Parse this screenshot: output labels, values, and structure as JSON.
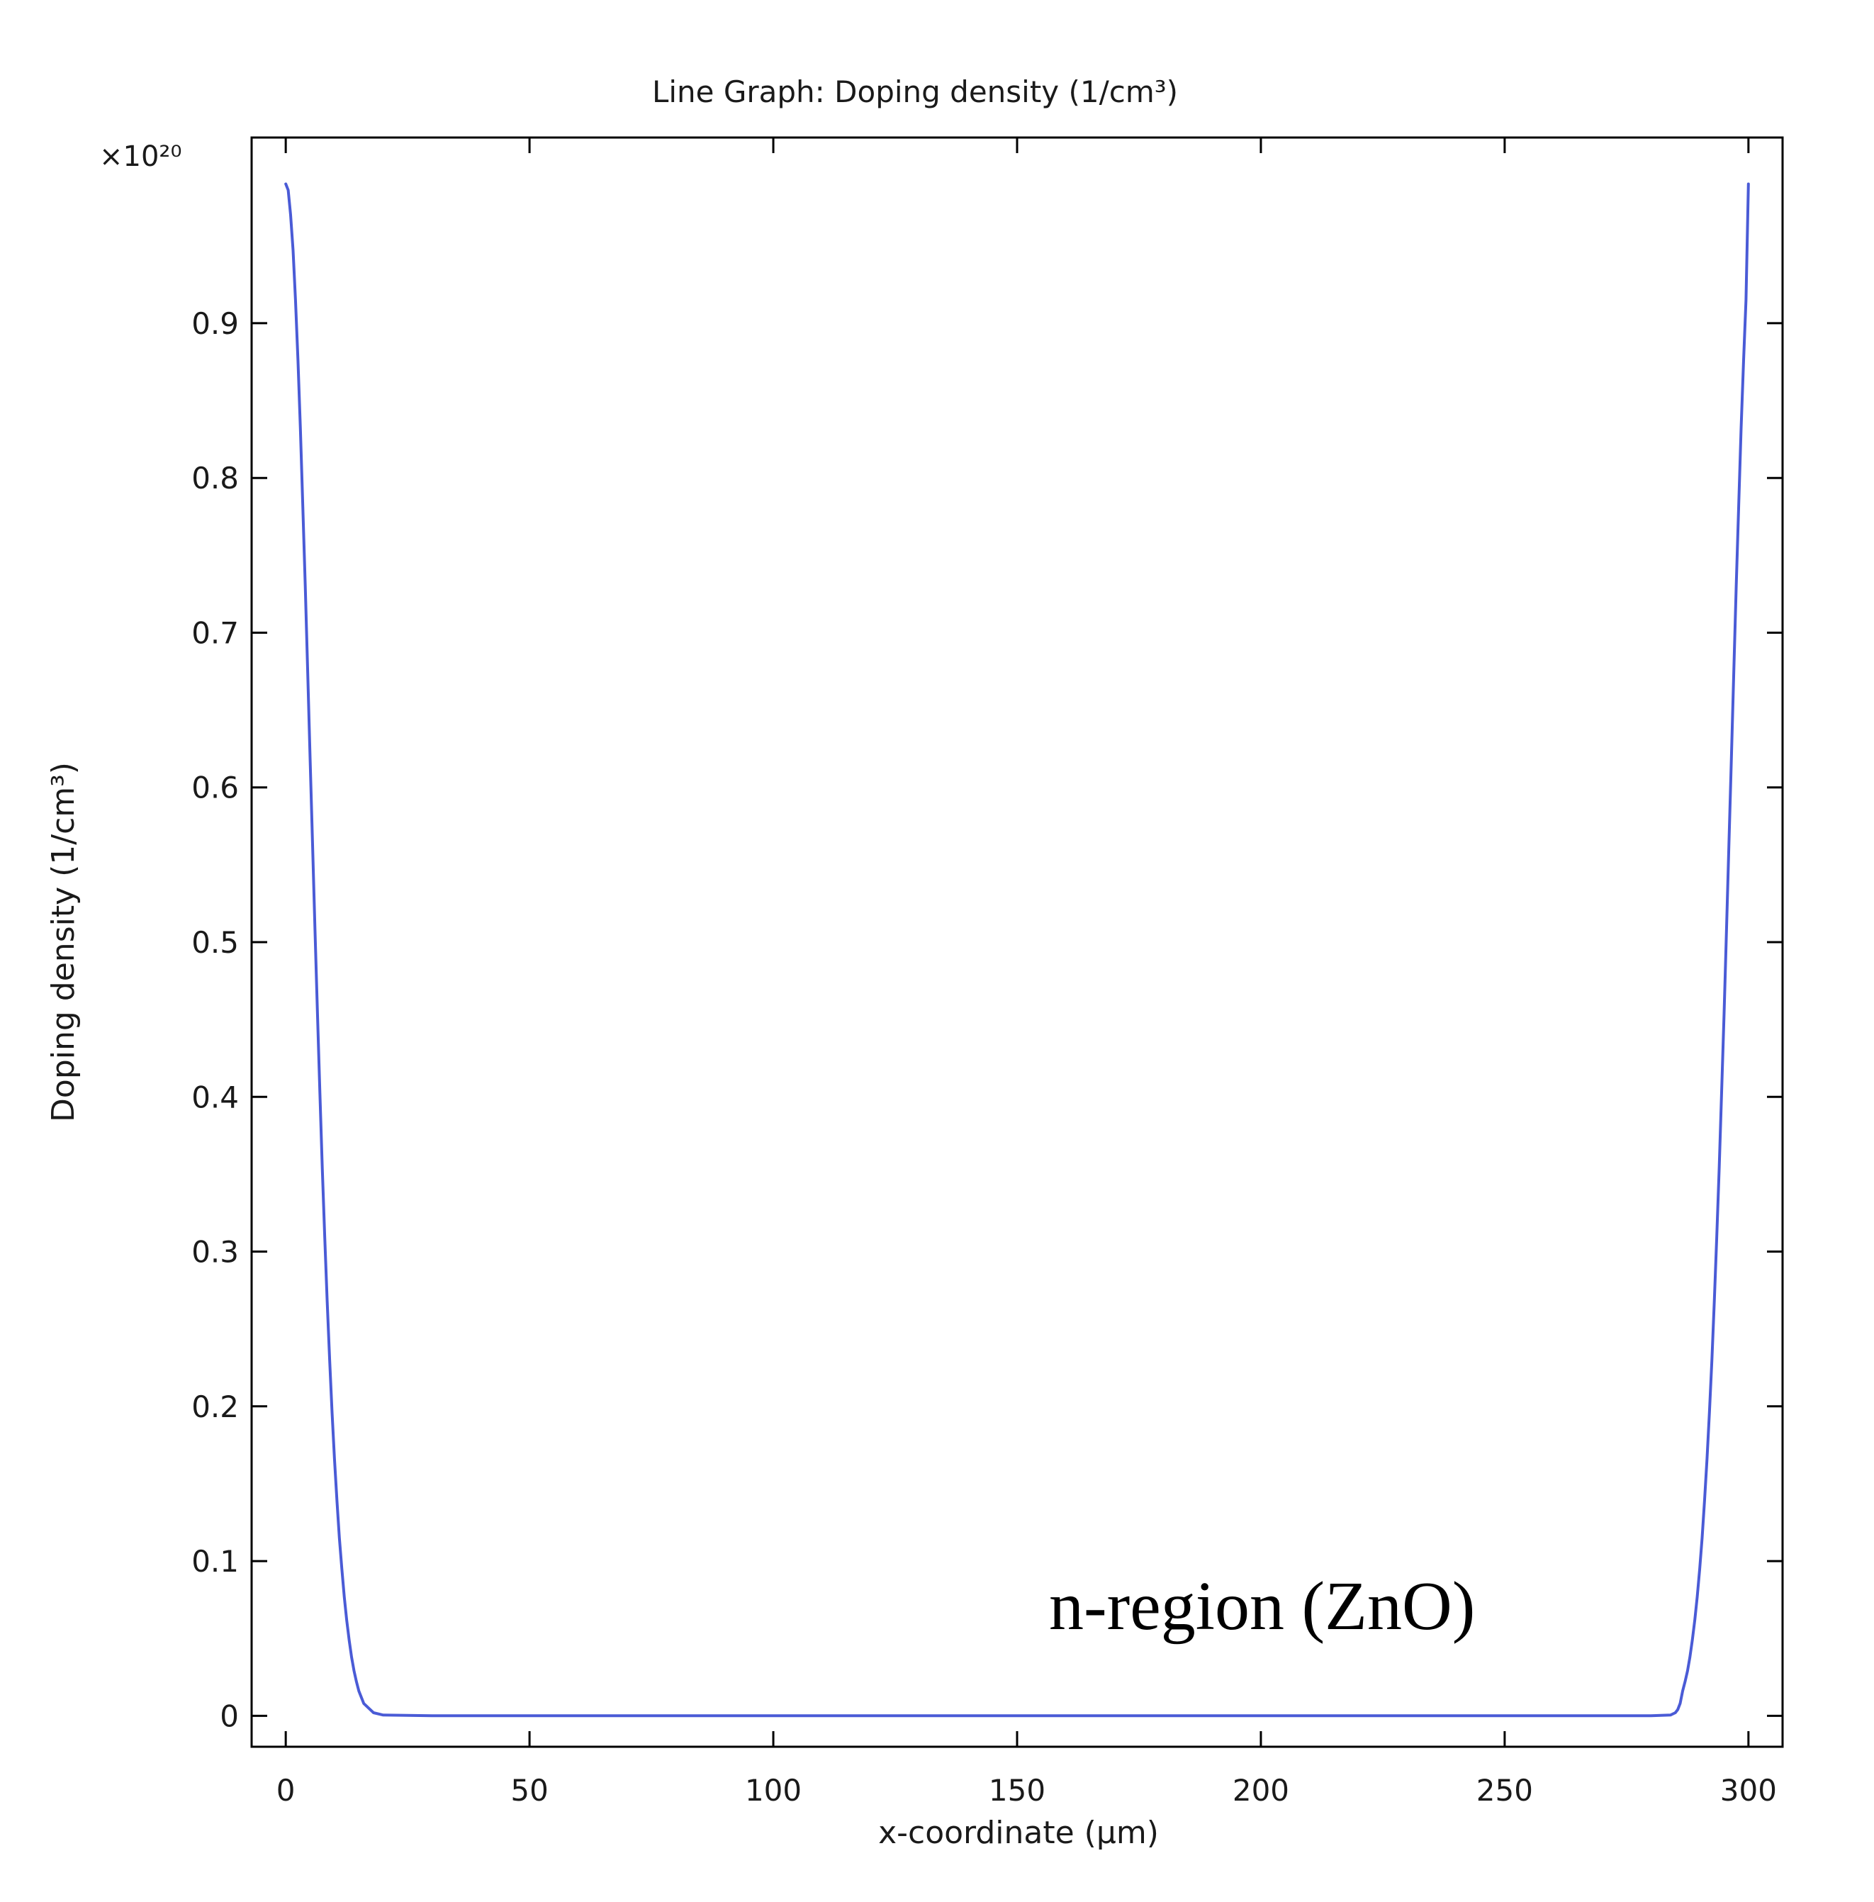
{
  "chart_data": {
    "type": "line",
    "title": "Line Graph: Doping density (1/cm³)",
    "xlabel": "x-coordinate (µm)",
    "ylabel": "Doping density (1/cm³)",
    "y_multiplier": "×10²⁰",
    "annotation": "n-region (ZnO)",
    "xlim": [
      -7,
      307
    ],
    "ylim": [
      -0.02,
      1.02
    ],
    "x_ticks": [
      0,
      50,
      100,
      150,
      200,
      250,
      300
    ],
    "x_tick_labels": [
      "0",
      "50",
      "100",
      "150",
      "200",
      "250",
      "300"
    ],
    "y_ticks": [
      0,
      0.1,
      0.2,
      0.3,
      0.4,
      0.5,
      0.6,
      0.7,
      0.8,
      0.9
    ],
    "y_tick_labels": [
      "0",
      "0.1",
      "0.2",
      "0.3",
      "0.4",
      "0.5",
      "0.6",
      "0.7",
      "0.8",
      "0.9"
    ],
    "grid": false,
    "series": [
      {
        "color": "#4a5bd6",
        "x": [
          0,
          0.5,
          1,
          1.5,
          2,
          2.5,
          3,
          3.5,
          4,
          4.5,
          5,
          5.5,
          6,
          6.5,
          7,
          7.5,
          8,
          8.5,
          9,
          9.5,
          10,
          10.5,
          11,
          11.5,
          12,
          12.5,
          13,
          13.5,
          14,
          14.5,
          15,
          16,
          18,
          20,
          30,
          50,
          100,
          150,
          200,
          250,
          270,
          280,
          284,
          285,
          285.5,
          286,
          286.5,
          287,
          287.5,
          288,
          288.5,
          289,
          289.5,
          290,
          290.5,
          291,
          291.5,
          292,
          292.5,
          293,
          293.5,
          294,
          294.5,
          295,
          295.5,
          296,
          296.5,
          297,
          297.5,
          298,
          298.5,
          299,
          299.5,
          300
        ],
        "y": [
          0.99,
          0.986,
          0.97,
          0.947,
          0.915,
          0.876,
          0.832,
          0.782,
          0.73,
          0.675,
          0.619,
          0.563,
          0.508,
          0.454,
          0.403,
          0.354,
          0.309,
          0.268,
          0.23,
          0.196,
          0.166,
          0.139,
          0.115,
          0.095,
          0.077,
          0.062,
          0.049,
          0.038,
          0.029,
          0.022,
          0.016,
          0.008,
          0.002,
          0.0005,
          0,
          0,
          0,
          0,
          0,
          0,
          0,
          0,
          0.0005,
          0.002,
          0.004,
          0.008,
          0.016,
          0.022,
          0.029,
          0.038,
          0.049,
          0.062,
          0.077,
          0.095,
          0.115,
          0.139,
          0.166,
          0.196,
          0.23,
          0.268,
          0.309,
          0.354,
          0.403,
          0.454,
          0.508,
          0.563,
          0.619,
          0.675,
          0.73,
          0.782,
          0.832,
          0.876,
          0.915,
          0.99
        ]
      }
    ]
  }
}
